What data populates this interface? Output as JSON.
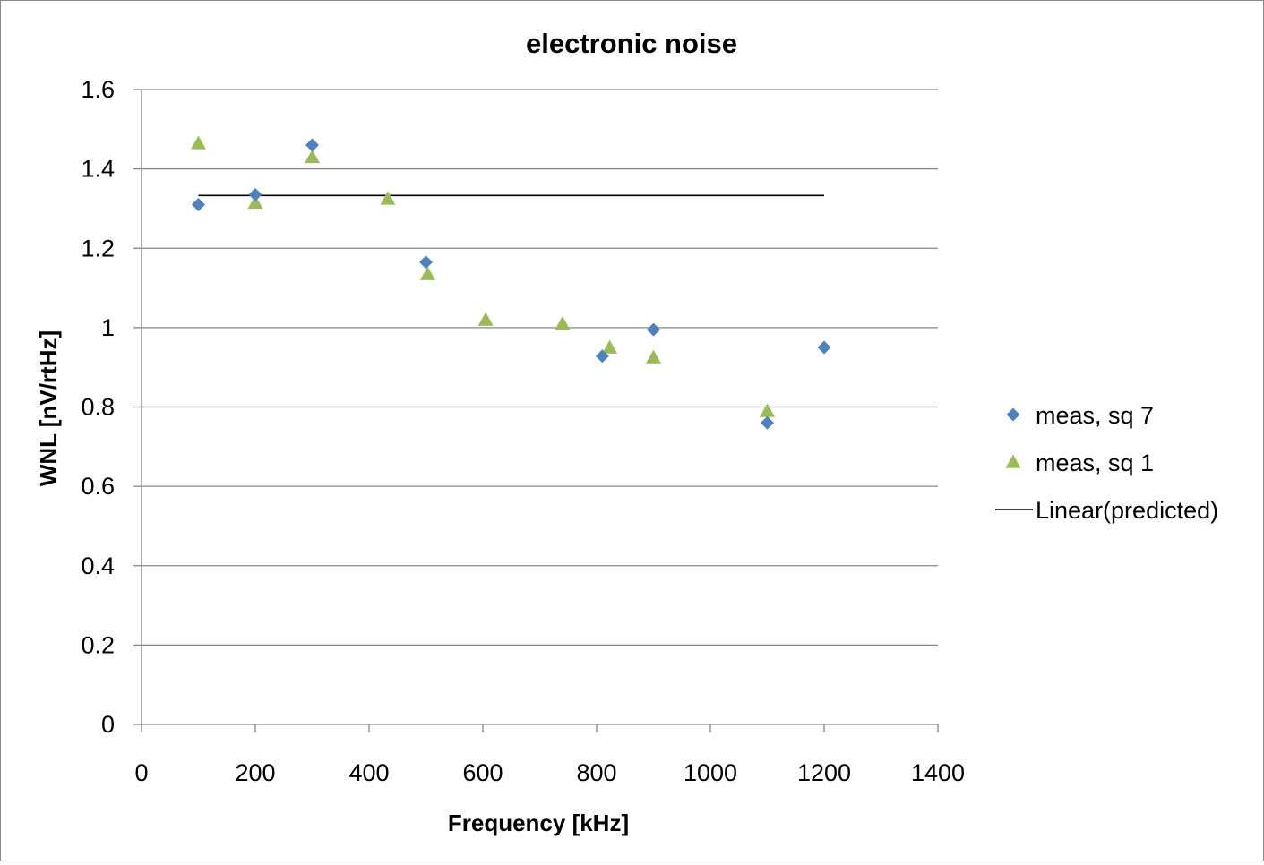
{
  "chart_data": {
    "type": "scatter",
    "title": "electronic noise",
    "xlabel": "Frequency [kHz]",
    "ylabel": "WNL [nV/rtHz]",
    "xlim": [
      0,
      1400
    ],
    "ylim": [
      0,
      1.6
    ],
    "x_ticks": [
      0,
      200,
      400,
      600,
      800,
      1000,
      1200,
      1400
    ],
    "x_tick_labels": [
      "0",
      "200",
      "400",
      "600",
      "800",
      "1000",
      "1200",
      "1400"
    ],
    "y_ticks": [
      0,
      0.2,
      0.4,
      0.6,
      0.8,
      1,
      1.2,
      1.4,
      1.6
    ],
    "y_tick_labels": [
      "0",
      "0.2",
      "0.4",
      "0.6",
      "0.8",
      "1",
      "1.2",
      "1.4",
      "1.6"
    ],
    "grid": "horizontal",
    "legend_position": "right",
    "series": [
      {
        "name": "meas, sq 7",
        "marker": "diamond",
        "color": "#4F81BD",
        "x": [
          100,
          200,
          300,
          500,
          810,
          900,
          1100,
          1200
        ],
        "y": [
          1.31,
          1.335,
          1.46,
          1.165,
          0.928,
          0.995,
          0.76,
          0.95
        ]
      },
      {
        "name": "meas, sq 1",
        "marker": "triangle",
        "color": "#9BBB59",
        "x": [
          100,
          200,
          300,
          433,
          503,
          605,
          740,
          823,
          900,
          1100
        ],
        "y": [
          1.465,
          1.315,
          1.43,
          1.325,
          1.135,
          1.02,
          1.01,
          0.95,
          0.925,
          0.79
        ]
      },
      {
        "name": "Linear(predicted)",
        "marker": "line",
        "color": "#000000",
        "x": [
          100,
          1200
        ],
        "y": [
          1.333,
          1.333
        ]
      }
    ]
  }
}
